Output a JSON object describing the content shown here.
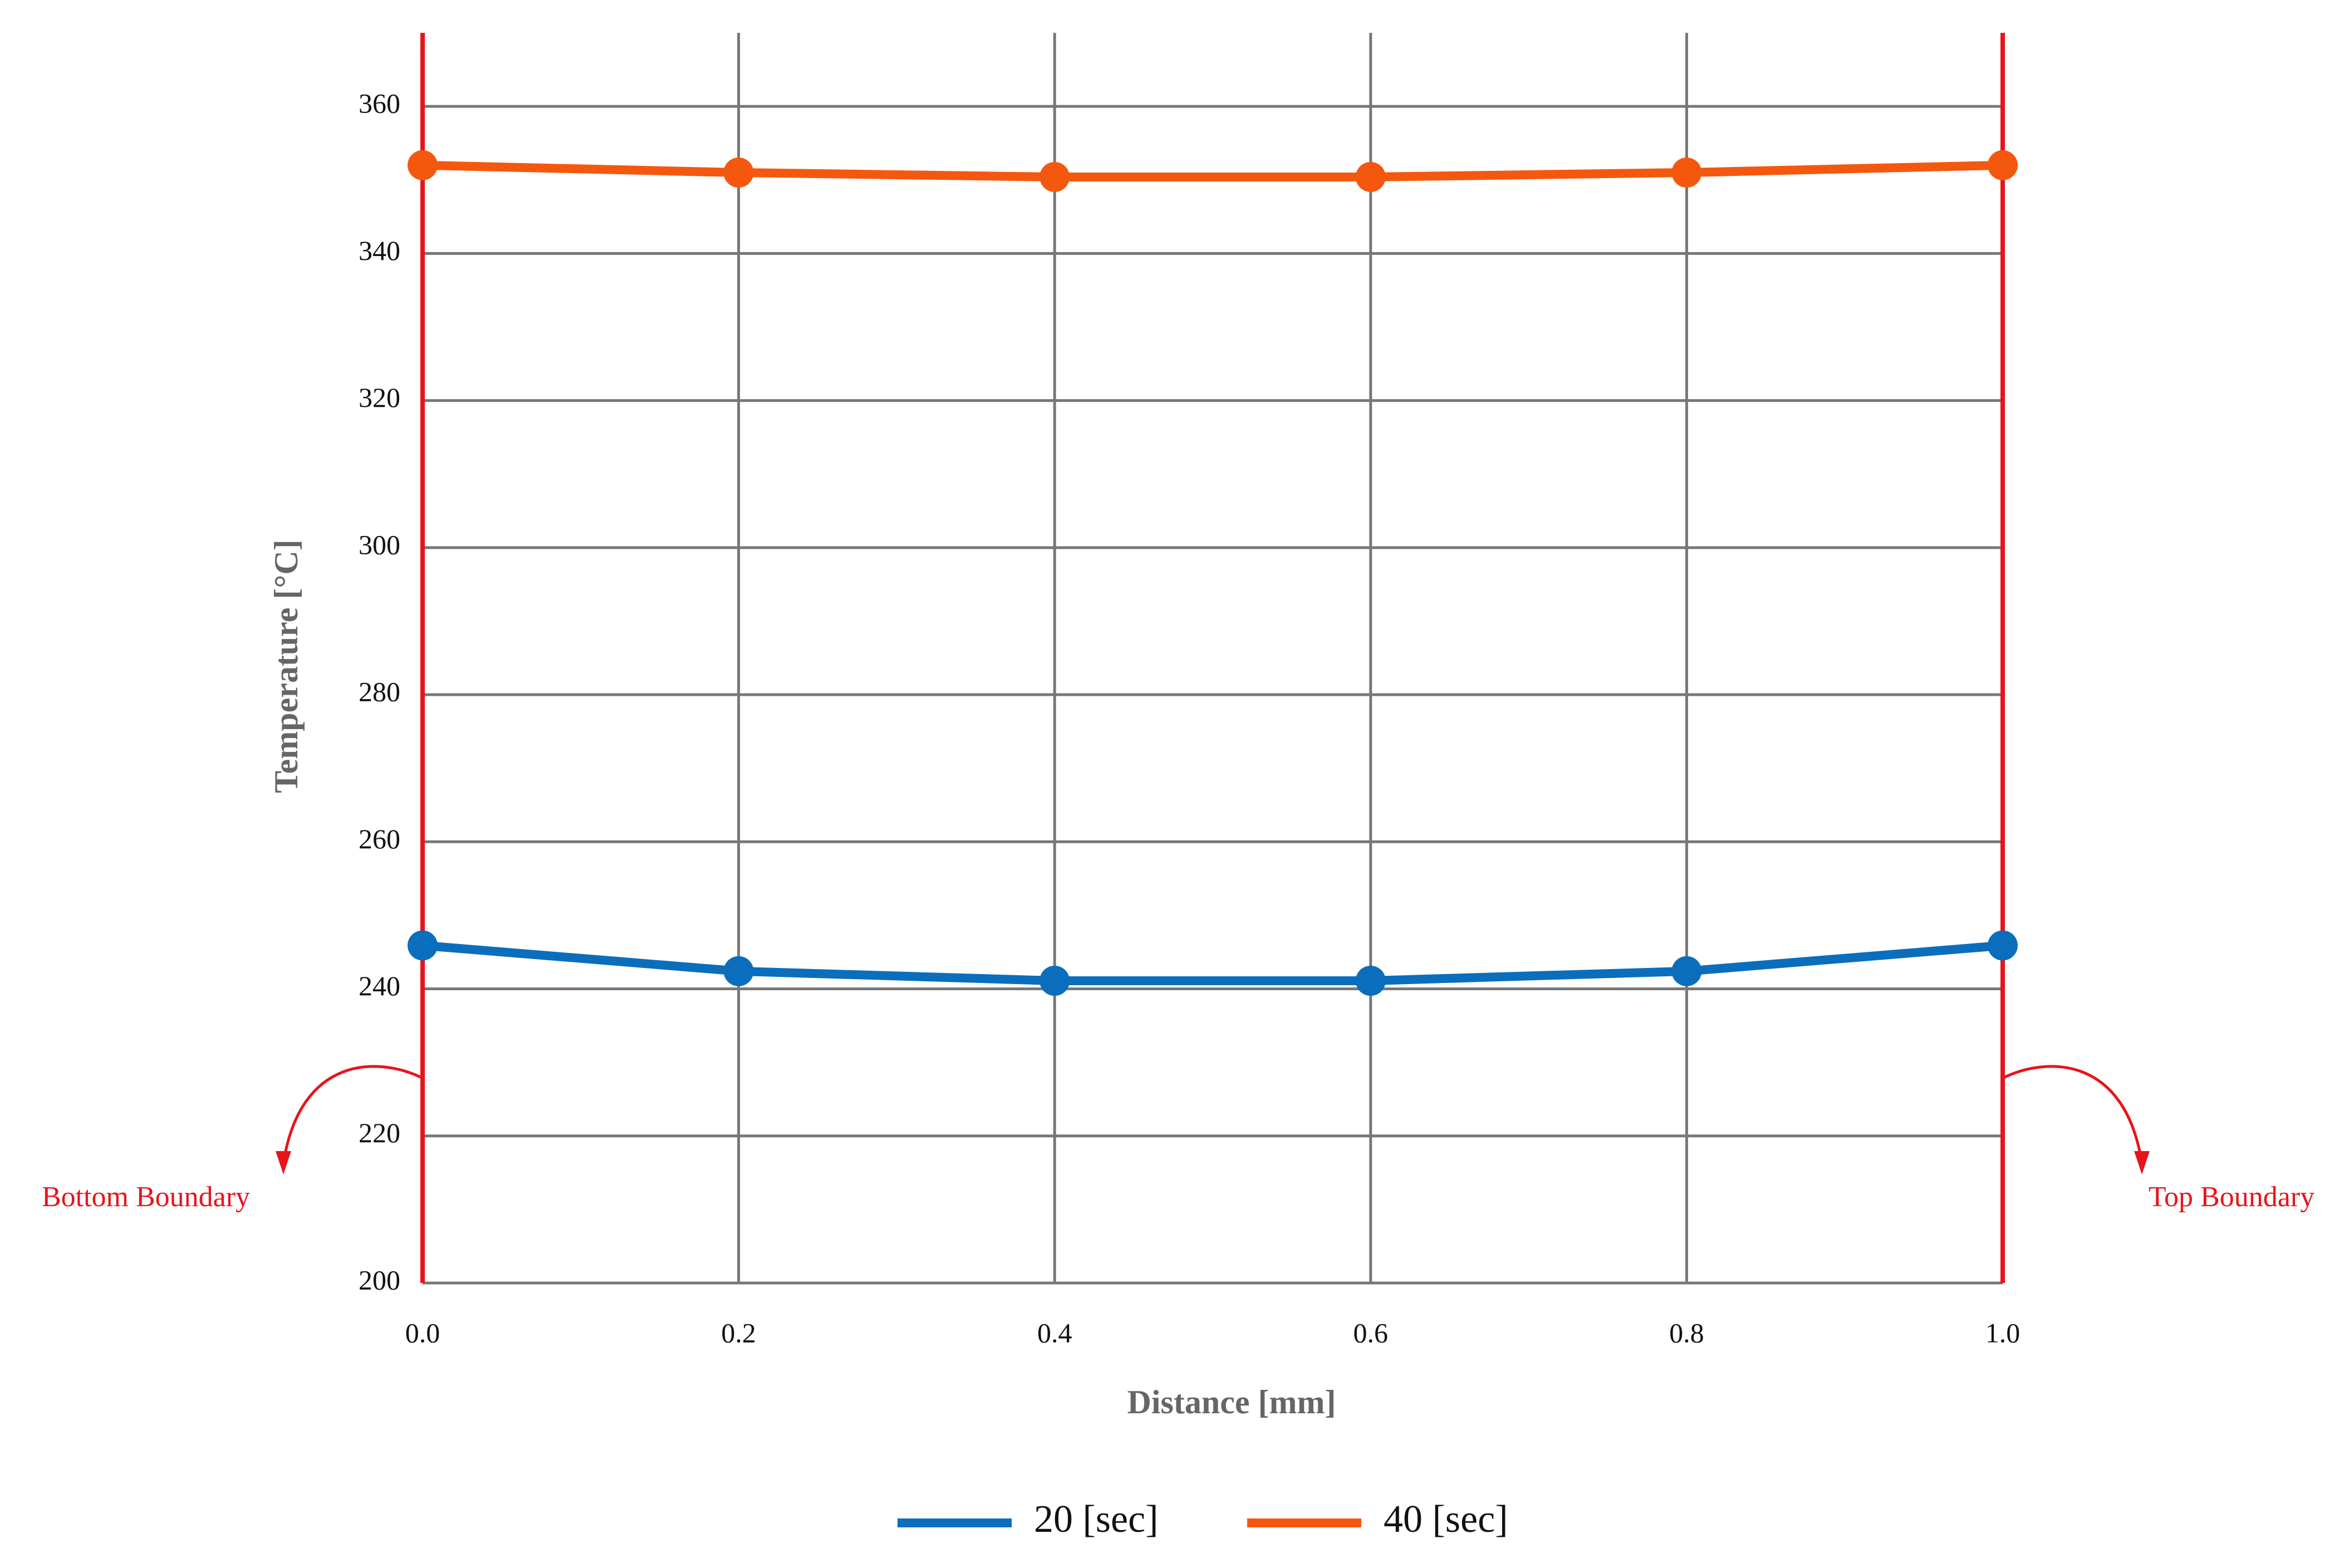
{
  "chart_data": {
    "type": "line",
    "x_label": "Distance [mm]",
    "y_label": "Temperature [°C]",
    "x": [
      0,
      0.2,
      0.4,
      0.6,
      0.8,
      1
    ],
    "series": [
      {
        "name": "20 [sec]",
        "color": "#0a6ebd",
        "values": [
          245.9,
          242.4,
          241.1,
          241.1,
          242.4,
          245.9
        ]
      },
      {
        "name": "40 [sec]",
        "color": "#f4580f",
        "values": [
          352.0,
          351.0,
          350.4,
          350.4,
          351.0,
          352.0
        ]
      }
    ],
    "xlim": [
      0,
      1
    ],
    "xticks": [
      {
        "value": 0,
        "label": "0.0"
      },
      0.2,
      0.4,
      0.6,
      0.8,
      {
        "value": 1,
        "label": "1.0"
      }
    ],
    "ylim": [
      200,
      370
    ],
    "yticks": [
      200,
      220,
      240,
      260,
      280,
      300,
      320,
      340,
      360
    ],
    "grid": true,
    "legend": "bottom",
    "annotations": [
      {
        "text": "Bottom Boundary",
        "x": 0,
        "color": "#e8141a"
      },
      {
        "text": "Top Boundary",
        "x": 1,
        "color": "#e8141a"
      }
    ]
  }
}
